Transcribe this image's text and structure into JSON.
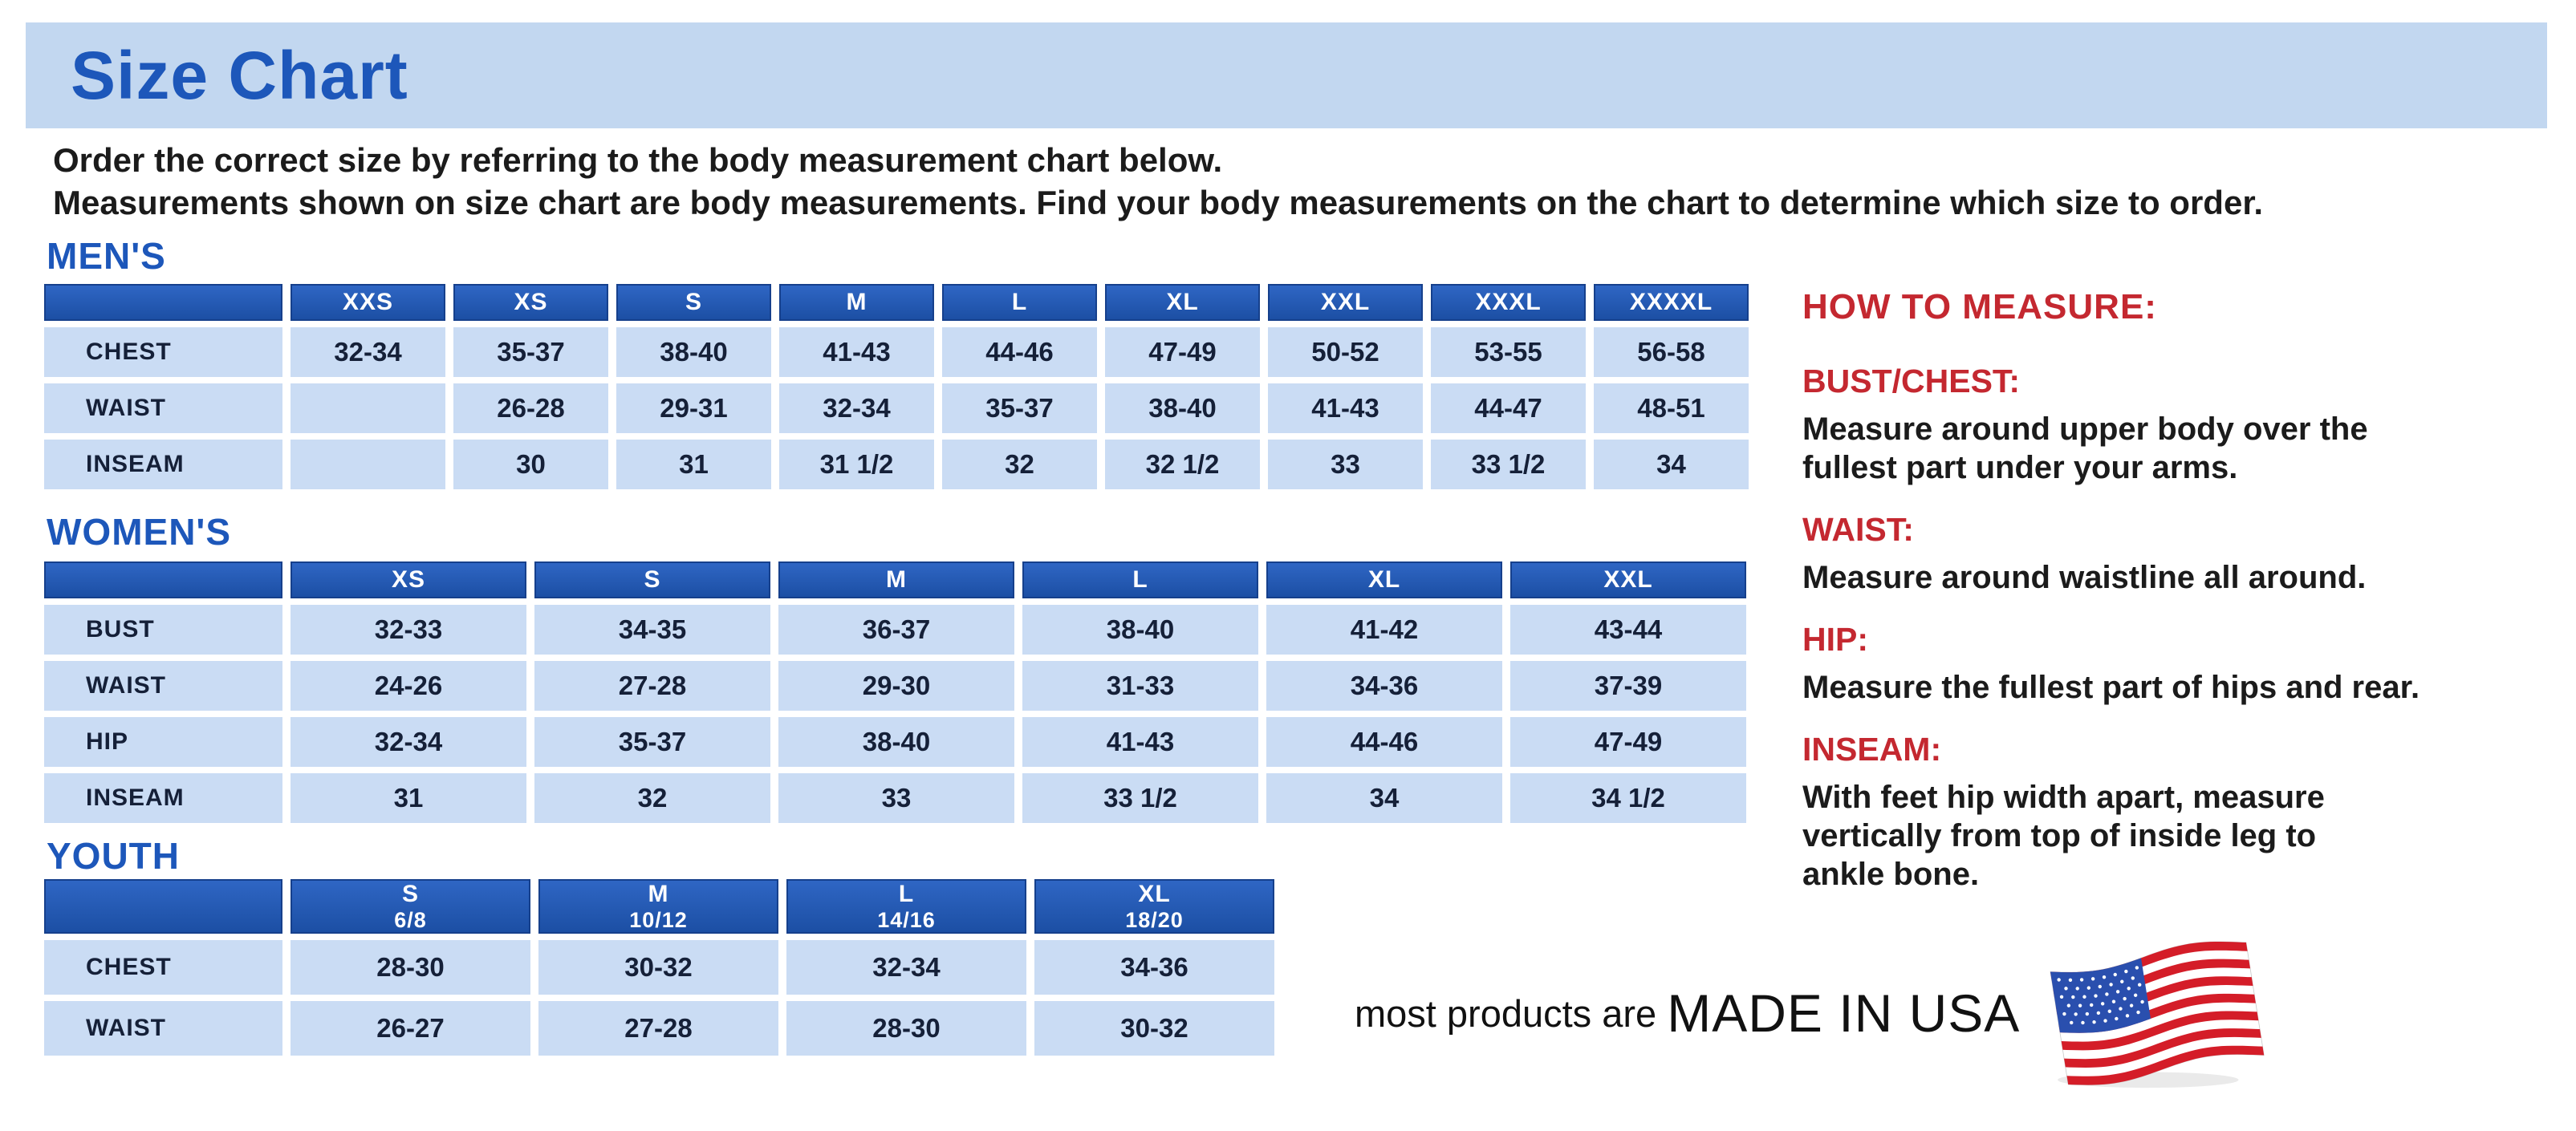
{
  "page": {
    "title": "Size Chart",
    "intro_line1": "Order the correct size by referring to the body measurement chart below.",
    "intro_line2": "Measurements shown on size chart are body measurements.  Find your body measurements on the chart to determine which size to order."
  },
  "colors": {
    "banner_bg": "#c2d7f0",
    "heading_blue": "#1d57ba",
    "header_top": "#2f66c4",
    "header_bottom": "#1c4fa4",
    "header_border": "#16408c",
    "cell_bg": "#cadcf4",
    "cell_text": "#152038",
    "red": "#c42830",
    "text_black": "#1b1b1b",
    "flag_red": "#d41d28",
    "flag_blue": "#2a4fae"
  },
  "tables": [
    {
      "id": "mens",
      "section_label": "MEN'S",
      "columns": [
        "XXS",
        "XS",
        "S",
        "M",
        "L",
        "XL",
        "XXL",
        "XXXL",
        "XXXXL"
      ],
      "rows": [
        {
          "label": "CHEST",
          "values": [
            "32-34",
            "35-37",
            "38-40",
            "41-43",
            "44-46",
            "47-49",
            "50-52",
            "53-55",
            "56-58"
          ]
        },
        {
          "label": "WAIST",
          "values": [
            "",
            "26-28",
            "29-31",
            "32-34",
            "35-37",
            "38-40",
            "41-43",
            "44-47",
            "48-51"
          ]
        },
        {
          "label": "INSEAM",
          "values": [
            "",
            "30",
            "31",
            "31 1/2",
            "32",
            "32 1/2",
            "33",
            "33 1/2",
            "34"
          ]
        }
      ]
    },
    {
      "id": "womens",
      "section_label": "WOMEN'S",
      "columns": [
        "XS",
        "S",
        "M",
        "L",
        "XL",
        "XXL"
      ],
      "rows": [
        {
          "label": "BUST",
          "values": [
            "32-33",
            "34-35",
            "36-37",
            "38-40",
            "41-42",
            "43-44"
          ]
        },
        {
          "label": "WAIST",
          "values": [
            "24-26",
            "27-28",
            "29-30",
            "31-33",
            "34-36",
            "37-39"
          ]
        },
        {
          "label": "HIP",
          "values": [
            "32-34",
            "35-37",
            "38-40",
            "41-43",
            "44-46",
            "47-49"
          ]
        },
        {
          "label": "INSEAM",
          "values": [
            "31",
            "32",
            "33",
            "33 1/2",
            "34",
            "34 1/2"
          ]
        }
      ]
    },
    {
      "id": "youth",
      "section_label": "YOUTH",
      "columns": [
        {
          "label": "S",
          "sub": "6/8"
        },
        {
          "label": "M",
          "sub": "10/12"
        },
        {
          "label": "L",
          "sub": "14/16"
        },
        {
          "label": "XL",
          "sub": "18/20"
        }
      ],
      "rows": [
        {
          "label": "CHEST",
          "values": [
            "28-30",
            "30-32",
            "32-34",
            "34-36"
          ]
        },
        {
          "label": "WAIST",
          "values": [
            "26-27",
            "27-28",
            "28-30",
            "30-32"
          ]
        }
      ]
    }
  ],
  "how_to_measure": {
    "title": "HOW TO MEASURE:",
    "items": [
      {
        "label": "BUST/CHEST:",
        "text": "Measure around upper body over the\nfullest part under your arms."
      },
      {
        "label": "WAIST:",
        "text": "Measure around waistline all around."
      },
      {
        "label": "HIP:",
        "text": "Measure the fullest part of hips and rear."
      },
      {
        "label": "INSEAM:",
        "text": "With feet hip width apart, measure\nvertically from top of inside leg to\nankle bone."
      }
    ]
  },
  "footer": {
    "prefix": "most products are ",
    "emphasis": "MADE IN USA",
    "flag_icon": "usa-flag-icon"
  }
}
